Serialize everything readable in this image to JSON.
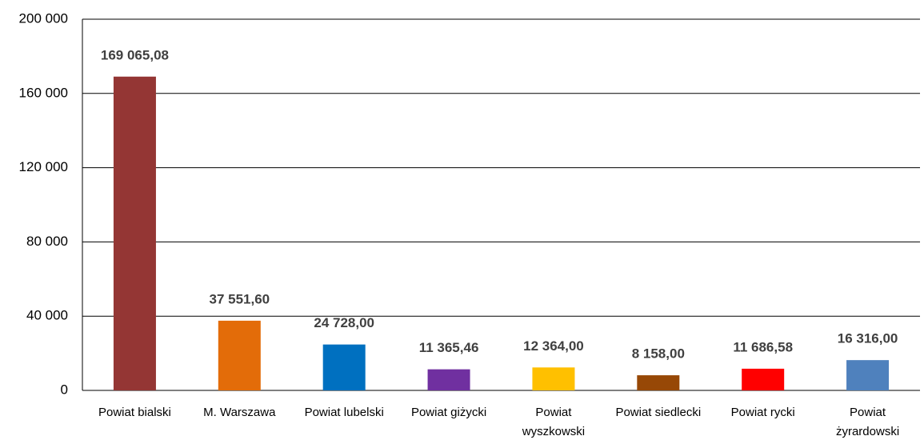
{
  "chart_data": {
    "type": "bar",
    "categories": [
      "Powiat bialski",
      "M. Warszawa",
      "Powiat lubelski",
      "Powiat giżycki",
      "Powiat wyszkowski",
      "Powiat siedlecki",
      "Powiat rycki",
      "Powiat żyrardowski"
    ],
    "values": [
      169065.08,
      37551.6,
      24728.0,
      11365.46,
      12364.0,
      8158.0,
      11686.58,
      16316.0
    ],
    "value_labels": [
      "169 065,08",
      "37 551,60",
      "24 728,00",
      "11 365,46",
      "12 364,00",
      "8 158,00",
      "11 686,58",
      "16 316,00"
    ],
    "colors": [
      "#943634",
      "#e36c09",
      "#0070c0",
      "#7030a0",
      "#ffc000",
      "#974806",
      "#ff0000",
      "#4f81bd"
    ],
    "ylim": [
      0,
      200000
    ],
    "yticks": [
      0,
      {
        "value": 40000,
        "label": "40 000"
      },
      {
        "value": 80000,
        "label": "80 000"
      },
      {
        "value": 120000,
        "label": "120 000"
      },
      {
        "value": 160000,
        "label": "160 000"
      },
      {
        "value": 200000,
        "label": "200 000"
      }
    ],
    "grid": true
  }
}
